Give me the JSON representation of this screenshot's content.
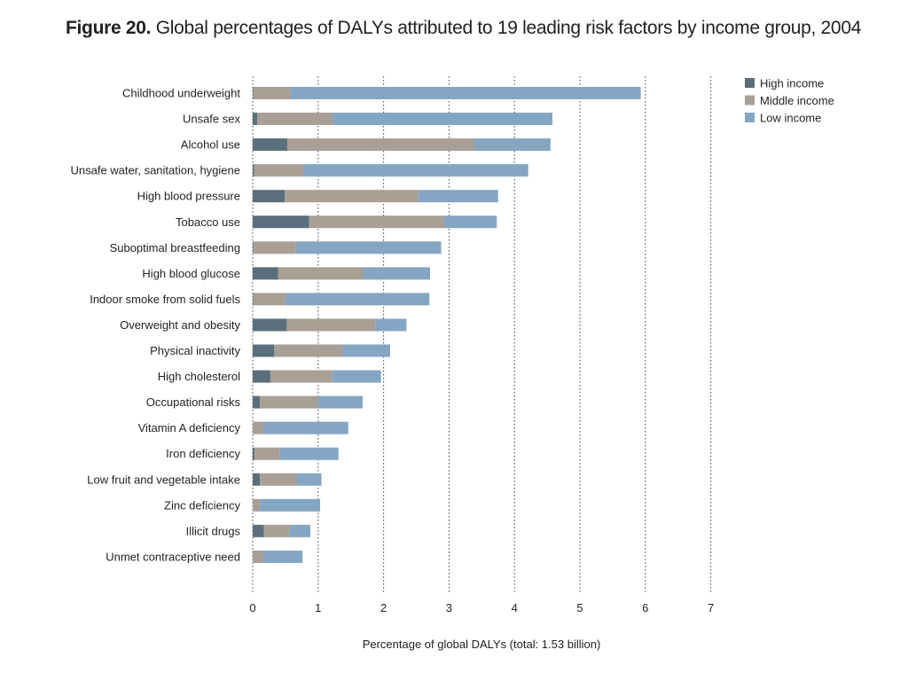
{
  "figure": {
    "number": "Figure 20.",
    "caption": "Global percentages of DALYs attributed to 19 leading risk factors by income group, 2004"
  },
  "colors": {
    "high_income": "#5b6e7c",
    "middle_income": "#a99f95",
    "low_income": "#84a6c3"
  },
  "chart_data": {
    "type": "bar",
    "orientation": "horizontal",
    "stacked": true,
    "title": "Global percentages of DALYs attributed to 19 leading risk factors by income group, 2004",
    "xlabel": "Percentage of global DALYs (total: 1.53 billion)",
    "ylabel": "",
    "xlim": [
      0,
      7
    ],
    "xticks": [
      "0",
      "1",
      "2",
      "3",
      "4",
      "5",
      "6",
      "7"
    ],
    "grid": "vertical dotted",
    "legend_position": "top-right",
    "categories": [
      "Childhood underweight",
      "Unsafe sex",
      "Alcohol use",
      "Unsafe water, sanitation, hygiene",
      "High blood pressure",
      "Tobacco use",
      "Suboptimal breastfeeding",
      "High blood glucose",
      "Indoor smoke from solid fuels",
      "Overweight and obesity",
      "Physical inactivity",
      "High cholesterol",
      "Occupational risks",
      "Vitamin A deficiency",
      "Iron deficiency",
      "Low fruit and vegetable intake",
      "Zinc deficiency",
      "Illicit drugs",
      "Unmet contraceptive need"
    ],
    "series": [
      {
        "name": "High income",
        "values": [
          0.01,
          0.07,
          0.53,
          0.02,
          0.49,
          0.86,
          0.01,
          0.39,
          0.01,
          0.52,
          0.33,
          0.27,
          0.11,
          0.0,
          0.03,
          0.11,
          0.0,
          0.17,
          0.0
        ]
      },
      {
        "name": "Middle income",
        "values": [
          0.56,
          1.15,
          2.85,
          0.76,
          2.04,
          2.06,
          0.65,
          1.29,
          0.49,
          1.36,
          1.04,
          0.94,
          0.88,
          0.17,
          0.38,
          0.56,
          0.11,
          0.39,
          0.17
        ]
      },
      {
        "name": "Low income",
        "values": [
          5.36,
          3.36,
          1.17,
          3.43,
          1.22,
          0.81,
          2.22,
          1.03,
          2.2,
          0.47,
          0.73,
          0.75,
          0.69,
          1.29,
          0.9,
          0.38,
          0.92,
          0.32,
          0.59
        ]
      }
    ]
  }
}
